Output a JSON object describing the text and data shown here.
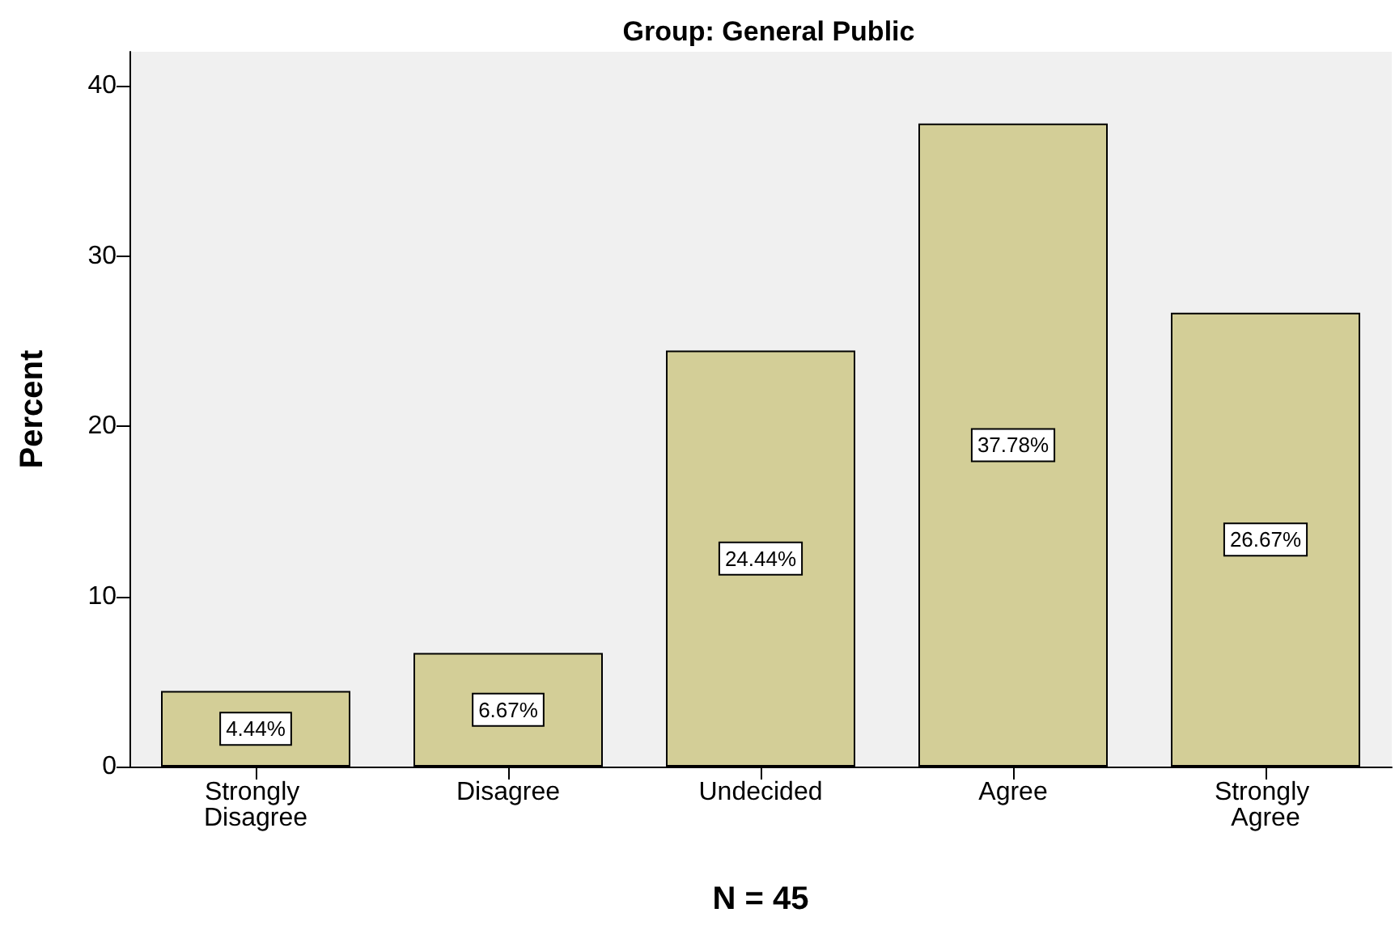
{
  "chart_data": {
    "type": "bar",
    "title": "Group: General Public",
    "xlabel": "N = 45",
    "ylabel": "Percent",
    "categories": [
      "Strongly Disagree",
      "Disagree",
      "Undecided",
      "Agree",
      "Strongly Agree"
    ],
    "values": [
      4.44,
      6.67,
      24.44,
      37.78,
      26.67
    ],
    "value_labels": [
      "4.44%",
      "6.67%",
      "24.44%",
      "37.78%",
      "26.67%"
    ],
    "color": "#d3ce97",
    "ylim": [
      0,
      42
    ],
    "yticks": [
      0,
      10,
      20,
      30,
      40
    ],
    "grid": false
  }
}
